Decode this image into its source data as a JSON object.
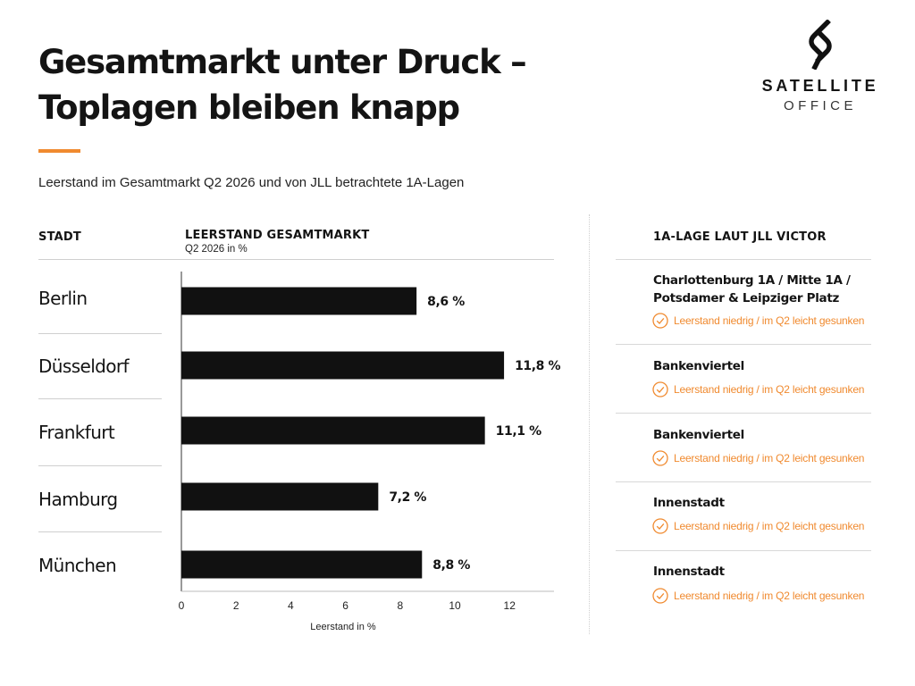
{
  "header": {
    "title_line1": "Gesamtmarkt unter Druck –",
    "title_line2": "Toplagen bleiben knapp",
    "subtitle": "Leerstand im Gesamtmarkt Q2 2026 und von JLL betrachtete 1A-Lagen"
  },
  "logo": {
    "line1": "SATELLITE",
    "line2": "OFFICE",
    "icon": "s-mark-icon"
  },
  "table": {
    "col_city": "STADT",
    "col_vacancy": "LEERSTAND GESAMTMARKT",
    "col_vacancy_sub": "Q2 2026 in %",
    "col_prime": "1A-LAGE LAUT JLL VICTOR"
  },
  "chart_data": {
    "type": "bar",
    "orientation": "horizontal",
    "categories": [
      "Berlin",
      "Düsseldorf",
      "Frankfurt",
      "Hamburg",
      "München"
    ],
    "values": [
      8.6,
      11.8,
      11.1,
      7.2,
      8.8
    ],
    "value_labels": [
      "8,6 %",
      "11,8 %",
      "11,1 %",
      "7,2 %",
      "8,8 %"
    ],
    "xlabel": "Leerstand in %",
    "xlim": [
      0,
      13.5
    ],
    "xticks": [
      0,
      2,
      4,
      6,
      8,
      10,
      12
    ],
    "bar_color": "#111111",
    "grid": false
  },
  "prime_locations": [
    {
      "location": "Charlottenburg 1A / Mitte 1A / Potsdamer & Leipziger Platz",
      "status": "Leerstand niedrig / im Q2 leicht gesunken"
    },
    {
      "location": "Bankenviertel",
      "status": "Leerstand niedrig / im Q2 leicht gesunken"
    },
    {
      "location": "Bankenviertel",
      "status": "Leerstand niedrig / im Q2 leicht gesunken"
    },
    {
      "location": "Innenstadt",
      "status": "Leerstand niedrig / im Q2 leicht gesunken"
    },
    {
      "location": "Innenstadt",
      "status": "Leerstand niedrig / im Q2 leicht gesunken"
    }
  ],
  "colors": {
    "accent": "#F08A2F",
    "text": "#141414",
    "bar": "#111111"
  },
  "icons": {
    "status": "check-circle-icon"
  }
}
